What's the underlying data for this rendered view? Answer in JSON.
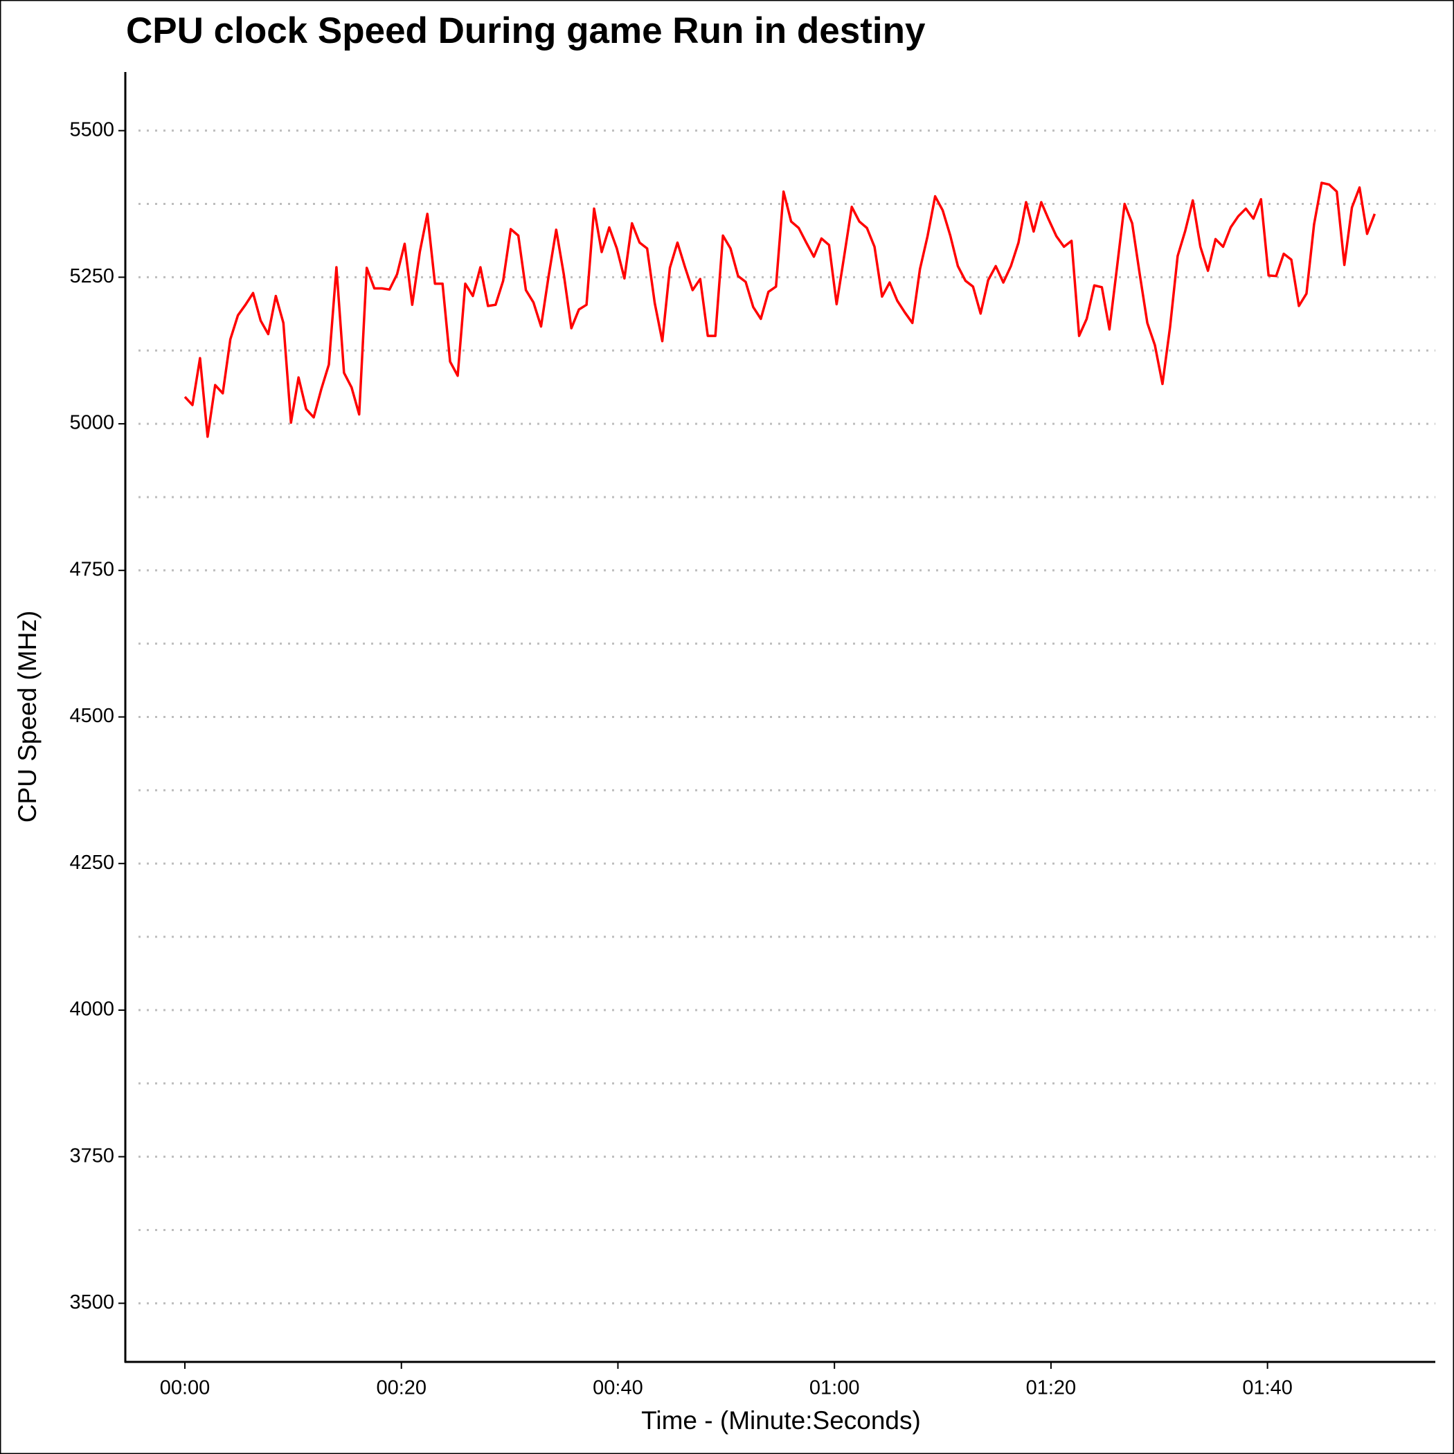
{
  "chart_data": {
    "type": "line",
    "title": "CPU clock Speed During game Run in destiny",
    "x_label": "Time - (Minute:Seconds)",
    "y_label": "CPU Speed (MHz)",
    "x": [
      0,
      0.7,
      1.4,
      2.1,
      2.8,
      3.5,
      4.2,
      4.9,
      5.6,
      6.3,
      7,
      7.7,
      8.4,
      9.1,
      9.8,
      10.5,
      11.2,
      11.9,
      12.6,
      13.3,
      14,
      14.7,
      15.4,
      16.1,
      16.8,
      17.5,
      18.2,
      18.9,
      19.6,
      20.3,
      21,
      21.7,
      22.4,
      23.1,
      23.8,
      24.5,
      25.2,
      25.9,
      26.6,
      27.3,
      28,
      28.7,
      29.4,
      30.1,
      30.8,
      31.5,
      32.2,
      32.9,
      33.6,
      34.3,
      35,
      35.7,
      36.4,
      37.1,
      37.8,
      38.5,
      39.2,
      39.9,
      40.6,
      41.3,
      42,
      42.7,
      43.4,
      44.1,
      44.8,
      45.5,
      46.2,
      46.9,
      47.6,
      48.3,
      49,
      49.7,
      50.4,
      51.1,
      51.8,
      52.5,
      53.2,
      53.9,
      54.6,
      55.3,
      56,
      56.7,
      57.4,
      58.1,
      58.8,
      59.5,
      60.2,
      60.9,
      61.6,
      62.3,
      63,
      63.7,
      64.4,
      65.1,
      65.8,
      66.5,
      67.2,
      67.9,
      68.6,
      69.3,
      70,
      70.7,
      71.4,
      72.1,
      72.8,
      73.5,
      74.2,
      74.9,
      75.6,
      76.3,
      77,
      77.7,
      78.4,
      79.1,
      79.8,
      80.5,
      81.2,
      81.9,
      82.6,
      83.3,
      84,
      84.7,
      85.4,
      86.1,
      86.8,
      87.5,
      88.2,
      88.9,
      89.6,
      90.3,
      91,
      91.7,
      92.4,
      93.1,
      93.8,
      94.5,
      95.2,
      95.9,
      96.6,
      97.3,
      98,
      98.7,
      99.4,
      100.1,
      100.8,
      101.5,
      102.2,
      102.9,
      103.6,
      104.3,
      105,
      105.7,
      106.4,
      107.1,
      107.8,
      108.5,
      109.2,
      109.9
    ],
    "series": [
      {
        "name": "CPU Speed",
        "color": "#ff0000",
        "values": [
          5046,
          5032,
          5112,
          4978,
          5066,
          5052,
          5144,
          5185,
          5203,
          5223,
          5176,
          5153,
          5218,
          5172,
          5002,
          5079,
          5025,
          5011,
          5059,
          5101,
          5267,
          5087,
          5062,
          5016,
          5266,
          5231,
          5231,
          5229,
          5255,
          5307,
          5203,
          5293,
          5358,
          5239,
          5239,
          5106,
          5082,
          5239,
          5218,
          5267,
          5201,
          5203,
          5244,
          5332,
          5321,
          5228,
          5207,
          5166,
          5252,
          5331,
          5255,
          5163,
          5195,
          5203,
          5367,
          5293,
          5335,
          5299,
          5248,
          5342,
          5309,
          5299,
          5206,
          5141,
          5266,
          5309,
          5267,
          5228,
          5247,
          5150,
          5150,
          5321,
          5299,
          5252,
          5242,
          5199,
          5179,
          5225,
          5234,
          5396,
          5345,
          5334,
          5309,
          5285,
          5316,
          5305,
          5204,
          5286,
          5370,
          5345,
          5334,
          5302,
          5217,
          5241,
          5210,
          5190,
          5172,
          5264,
          5320,
          5388,
          5364,
          5321,
          5269,
          5244,
          5234,
          5188,
          5245,
          5269,
          5241,
          5269,
          5309,
          5378,
          5328,
          5378,
          5348,
          5320,
          5302,
          5312,
          5150,
          5179,
          5236,
          5233,
          5161,
          5267,
          5375,
          5342,
          5255,
          5172,
          5134,
          5068,
          5165,
          5286,
          5329,
          5381,
          5302,
          5261,
          5315,
          5302,
          5335,
          5354,
          5367,
          5350,
          5383,
          5253,
          5252,
          5290,
          5280,
          5201,
          5222,
          5340,
          5411,
          5408,
          5396,
          5271,
          5369,
          5403,
          5324,
          5358
        ]
      }
    ],
    "xlim": [
      -5.5,
      115.5
    ],
    "xticks": [
      {
        "value": 0,
        "label": "00:00"
      },
      {
        "value": 20,
        "label": "00:20"
      },
      {
        "value": 40,
        "label": "00:40"
      },
      {
        "value": 60,
        "label": "01:00"
      },
      {
        "value": 80,
        "label": "01:20"
      },
      {
        "value": 100,
        "label": "01:40"
      }
    ],
    "ylim": [
      3400,
      5600
    ],
    "yticks": [
      3500,
      3750,
      4000,
      4250,
      4500,
      4750,
      5000,
      5250,
      5500
    ],
    "yminorticks": [
      3625,
      3875,
      4125,
      4375,
      4625,
      4875,
      5125,
      5375
    ],
    "grid": true
  }
}
